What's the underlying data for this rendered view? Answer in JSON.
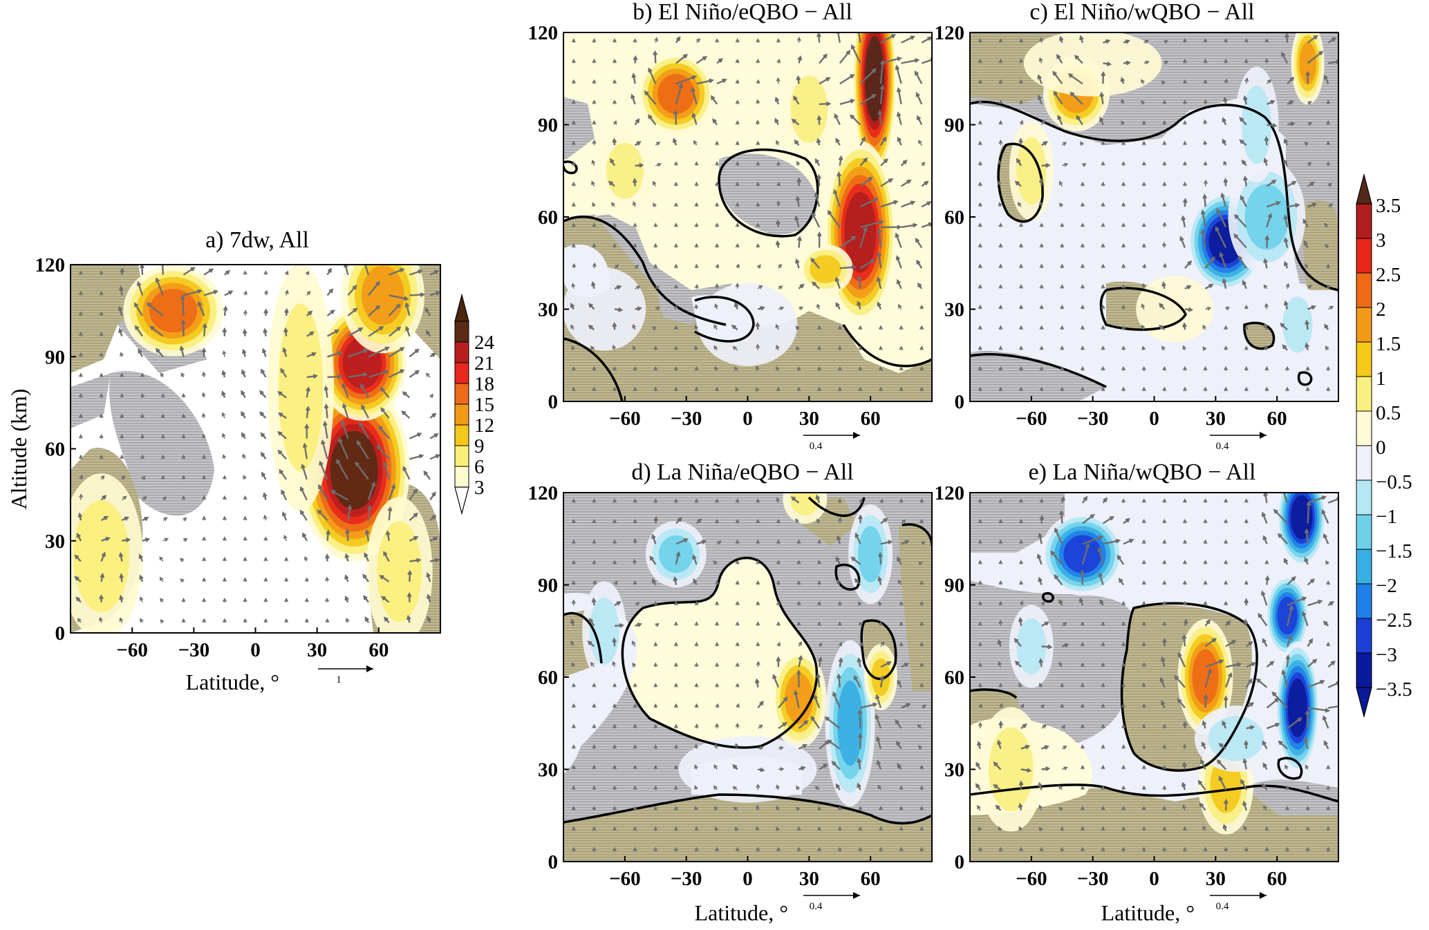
{
  "colors": {
    "frame": "#000000",
    "contour": "#000000",
    "vector": "#6e6e6e",
    "hatch_gray": "#b4b4b8",
    "hatch_olive": "#b7b08c",
    "warm_scale": [
      "#ffffff",
      "#fffbd0",
      "#fbef7a",
      "#f3c81a",
      "#f29a18",
      "#ee6918",
      "#e8281c",
      "#b81e1e",
      "#5a2a14"
    ],
    "diverging_scale": [
      "#0b1a9a",
      "#1c3fd6",
      "#1f7ee8",
      "#38aee2",
      "#6fd0ea",
      "#b6e7f4",
      "#eef0fa",
      "#fffbd6",
      "#f9ef80",
      "#f3c91a",
      "#f29a18",
      "#ee6a17",
      "#e8271b",
      "#b01e1e",
      "#54281a"
    ]
  },
  "chart_data": [
    {
      "id": "a",
      "type": "contour-vector",
      "title": "a)  7dw, All",
      "ylabel": "Altitude (km)",
      "xlabel": "Latitude, °",
      "x_ticks": [
        -60,
        -30,
        0,
        30,
        60
      ],
      "y_ticks": [
        0,
        30,
        60,
        90,
        120
      ],
      "xlim": [
        -90,
        90
      ],
      "ylim": [
        0,
        120
      ],
      "vector_ref": "1",
      "colorbar": {
        "labels": [
          "24",
          "21",
          "18",
          "15",
          "12",
          "9",
          "6",
          "3"
        ],
        "levels": [
          3,
          6,
          9,
          12,
          15,
          18,
          21,
          24
        ],
        "triangle_top": "#4a2710",
        "triangle_bottom": "#ffffff"
      },
      "features": [
        {
          "lat": -40,
          "alt": 105,
          "value": 14,
          "sx": 18,
          "sy": 11
        },
        {
          "lat": 48,
          "alt": 53,
          "value": 24,
          "sx": 20,
          "sy": 22
        },
        {
          "lat": 52,
          "alt": 88,
          "value": 19,
          "sx": 16,
          "sy": 14
        },
        {
          "lat": 62,
          "alt": 110,
          "value": 12,
          "sx": 15,
          "sy": 14
        },
        {
          "lat": 22,
          "alt": 80,
          "value": 5,
          "sx": 12,
          "sy": 30
        },
        {
          "lat": -75,
          "alt": 25,
          "value": 4,
          "sx": 15,
          "sy": 20
        },
        {
          "lat": 70,
          "alt": 20,
          "value": 6,
          "sx": 12,
          "sy": 18
        }
      ]
    },
    {
      "id": "b",
      "type": "contour-vector",
      "title": "b)  El Niño/eQBO − All",
      "ylabel": "",
      "xlabel": "",
      "x_ticks": [
        -60,
        -30,
        0,
        30,
        60
      ],
      "y_ticks": [
        0,
        30,
        60,
        90,
        120
      ],
      "xlim": [
        -90,
        90
      ],
      "ylim": [
        0,
        120
      ],
      "vector_ref": "0.4",
      "features": [
        {
          "lat": -35,
          "alt": 100,
          "value": 2.5,
          "sx": 14,
          "sy": 10
        },
        {
          "lat": 62,
          "alt": 105,
          "value": 3.6,
          "sx": 8,
          "sy": 24
        },
        {
          "lat": 55,
          "alt": 55,
          "value": 3.3,
          "sx": 13,
          "sy": 22
        },
        {
          "lat": 38,
          "alt": 43,
          "value": 1.2,
          "sx": 10,
          "sy": 6
        },
        {
          "lat": 30,
          "alt": 95,
          "value": 0.8,
          "sx": 10,
          "sy": 12
        },
        {
          "lat": -60,
          "alt": 75,
          "value": 0.6,
          "sx": 10,
          "sy": 10
        },
        {
          "lat": -70,
          "alt": 30,
          "value": -0.5,
          "sx": 15,
          "sy": 10
        },
        {
          "lat": 0,
          "alt": 25,
          "value": -0.4,
          "sx": 18,
          "sy": 10
        }
      ]
    },
    {
      "id": "c",
      "type": "contour-vector",
      "title": "c)  El Niño/wQBO − All",
      "ylabel": "",
      "xlabel": "",
      "x_ticks": [
        -60,
        -30,
        0,
        30,
        60
      ],
      "y_ticks": [
        0,
        30,
        60,
        90,
        120
      ],
      "xlim": [
        -90,
        90
      ],
      "ylim": [
        0,
        120
      ],
      "vector_ref": "0.4",
      "features": [
        {
          "lat": -38,
          "alt": 100,
          "value": 2.0,
          "sx": 12,
          "sy": 9
        },
        {
          "lat": 75,
          "alt": 110,
          "value": 1.8,
          "sx": 6,
          "sy": 10
        },
        {
          "lat": 35,
          "alt": 52,
          "value": -3.2,
          "sx": 14,
          "sy": 12
        },
        {
          "lat": 55,
          "alt": 60,
          "value": -1.4,
          "sx": 14,
          "sy": 14
        },
        {
          "lat": 50,
          "alt": 90,
          "value": -0.8,
          "sx": 8,
          "sy": 14
        },
        {
          "lat": -60,
          "alt": 75,
          "value": 0.6,
          "sx": 8,
          "sy": 12
        },
        {
          "lat": 10,
          "alt": 30,
          "value": 0.5,
          "sx": 14,
          "sy": 8
        },
        {
          "lat": 70,
          "alt": 25,
          "value": -0.8,
          "sx": 8,
          "sy": 10
        },
        {
          "lat": -30,
          "alt": 110,
          "value": 0.5,
          "sx": 25,
          "sy": 8
        }
      ]
    },
    {
      "id": "d",
      "type": "contour-vector",
      "title": "d)  La Niña/eQBO − All",
      "ylabel": "",
      "xlabel": "Latitude, °",
      "x_ticks": [
        -60,
        -30,
        0,
        30,
        60
      ],
      "y_ticks": [
        0,
        30,
        60,
        90,
        120
      ],
      "xlim": [
        -90,
        90
      ],
      "ylim": [
        0,
        120
      ],
      "vector_ref": "0.4",
      "features": [
        {
          "lat": -35,
          "alt": 100,
          "value": -1.3,
          "sx": 11,
          "sy": 8
        },
        {
          "lat": 25,
          "alt": 53,
          "value": 1.9,
          "sx": 10,
          "sy": 12
        },
        {
          "lat": 50,
          "alt": 45,
          "value": -2.0,
          "sx": 9,
          "sy": 20
        },
        {
          "lat": 65,
          "alt": 60,
          "value": 1.2,
          "sx": 6,
          "sy": 8
        },
        {
          "lat": 60,
          "alt": 100,
          "value": -1.2,
          "sx": 8,
          "sy": 12
        },
        {
          "lat": 28,
          "alt": 118,
          "value": 0.8,
          "sx": 8,
          "sy": 6
        },
        {
          "lat": -70,
          "alt": 75,
          "value": -0.7,
          "sx": 8,
          "sy": 12
        },
        {
          "lat": 0,
          "alt": 30,
          "value": -0.3,
          "sx": 25,
          "sy": 8
        }
      ]
    },
    {
      "id": "e",
      "type": "contour-vector",
      "title": "e)  La Niña/wQBO − All",
      "ylabel": "",
      "xlabel": "Latitude, °",
      "x_ticks": [
        -60,
        -30,
        0,
        30,
        60
      ],
      "y_ticks": [
        0,
        30,
        60,
        90,
        120
      ],
      "xlim": [
        -90,
        90
      ],
      "ylim": [
        0,
        120
      ],
      "vector_ref": "0.4",
      "features": [
        {
          "lat": -35,
          "alt": 100,
          "value": -2.8,
          "sx": 15,
          "sy": 10
        },
        {
          "lat": 72,
          "alt": 112,
          "value": -3.4,
          "sx": 9,
          "sy": 12
        },
        {
          "lat": 65,
          "alt": 80,
          "value": -3.0,
          "sx": 8,
          "sy": 10
        },
        {
          "lat": 70,
          "alt": 50,
          "value": -3.2,
          "sx": 8,
          "sy": 16
        },
        {
          "lat": 25,
          "alt": 60,
          "value": 2.1,
          "sx": 10,
          "sy": 14
        },
        {
          "lat": 35,
          "alt": 25,
          "value": 1.4,
          "sx": 10,
          "sy": 12
        },
        {
          "lat": -70,
          "alt": 30,
          "value": 0.8,
          "sx": 12,
          "sy": 15
        },
        {
          "lat": -60,
          "alt": 70,
          "value": -0.9,
          "sx": 8,
          "sy": 10
        },
        {
          "lat": 40,
          "alt": 40,
          "value": -0.6,
          "sx": 15,
          "sy": 8
        }
      ]
    },
    {
      "id": "shared-colorbar",
      "type": "colorbar",
      "labels": [
        "3.5",
        "3",
        "2.5",
        "2",
        "1.5",
        "1",
        "0.5",
        "0",
        "−0.5",
        "−1",
        "−1.5",
        "−2",
        "−2.5",
        "−3",
        "−3.5"
      ],
      "levels": [
        3.5,
        3,
        2.5,
        2,
        1.5,
        1,
        0.5,
        0,
        -0.5,
        -1,
        -1.5,
        -2,
        -2.5,
        -3,
        -3.5
      ]
    }
  ]
}
